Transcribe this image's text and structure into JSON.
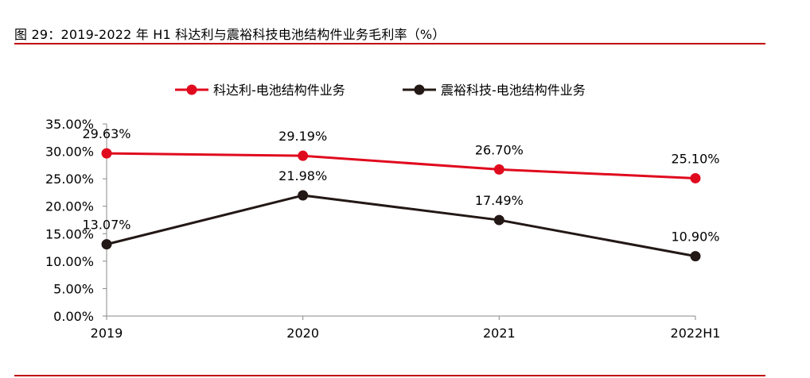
{
  "figure": {
    "title": "图 29：2019-2022 年 H1 科达利与震裕科技电池结构件业务毛利率（%）"
  },
  "chart_data": {
    "type": "line",
    "title": "图 29：2019-2022 年 H1 科达利与震裕科技电池结构件业务毛利率（%）",
    "categories": [
      "2019",
      "2020",
      "2021",
      "2022H1"
    ],
    "series": [
      {
        "name": "科达利-电池结构件业务",
        "color": "#e00a1e",
        "values": [
          29.63,
          29.19,
          26.7,
          25.1
        ],
        "labels": [
          "29.63%",
          "29.19%",
          "26.70%",
          "25.10%"
        ]
      },
      {
        "name": "震裕科技-电池结构件业务",
        "color": "#231815",
        "values": [
          13.07,
          21.98,
          17.49,
          10.9
        ],
        "labels": [
          "13.07%",
          "21.98%",
          "17.49%",
          "10.90%"
        ]
      }
    ],
    "ylim": [
      0,
      35
    ],
    "yticks": [
      0,
      5,
      10,
      15,
      20,
      25,
      30,
      35
    ],
    "ytick_labels": [
      "0.00%",
      "5.00%",
      "10.00%",
      "15.00%",
      "20.00%",
      "25.00%",
      "30.00%",
      "35.00%"
    ],
    "xlabel": "",
    "ylabel": "",
    "legend": "top-center",
    "grid": false
  }
}
